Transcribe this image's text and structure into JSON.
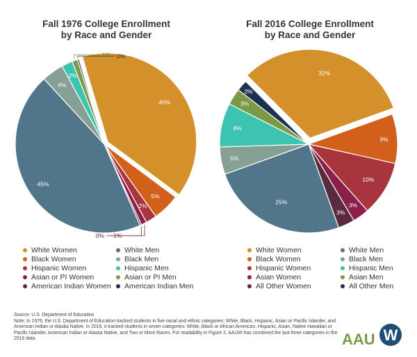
{
  "titles": {
    "chart1_line1": "Fall 1976 College Enrollment",
    "chart1_line2": "by Race and Gender",
    "chart2_line1": "Fall 2016 College Enrollment",
    "chart2_line2": "by Race and Gender"
  },
  "chart_data": [
    {
      "type": "pie",
      "title": "Fall 1976 College Enrollment by Race and Gender",
      "slices": [
        {
          "label": "White Women",
          "value": 40,
          "display": "40%",
          "color": "#D4902A"
        },
        {
          "label": "Black Women",
          "value": 5,
          "display": "5%",
          "color": "#D2601A"
        },
        {
          "label": "Hispanic Women",
          "value": 2,
          "display": "2%",
          "color": "#A8343E"
        },
        {
          "label": "Asian or PI Women",
          "value": 1,
          "display": "1%",
          "color": "#8C1F4A"
        },
        {
          "label": "American Indian Women",
          "value": 0.3,
          "display": "0%",
          "color": "#5A2A3E"
        },
        {
          "label": "White Men",
          "value": 45,
          "display": "45%",
          "color": "#517589"
        },
        {
          "label": "Black Men",
          "value": 4,
          "display": "4%",
          "color": "#86A096"
        },
        {
          "label": "Hispanic Men",
          "value": 2,
          "display": "2%",
          "color": "#3CC4B0"
        },
        {
          "label": "Asian or PI Men",
          "value": 1,
          "display": "1%",
          "color": "#7B9A45"
        },
        {
          "label": "American Indian Men",
          "value": 0.3,
          "display": "0%",
          "color": "#1E3050"
        }
      ]
    },
    {
      "type": "pie",
      "title": "Fall 2016 College Enrollment by Race and Gender",
      "slices": [
        {
          "label": "White Women",
          "value": 32,
          "display": "32%",
          "color": "#D4902A"
        },
        {
          "label": "Black Women",
          "value": 9,
          "display": "9%",
          "color": "#D2601A"
        },
        {
          "label": "Hispanic Women",
          "value": 10,
          "display": "10%",
          "color": "#A8343E"
        },
        {
          "label": "Asian Women",
          "value": 3,
          "display": "3%",
          "color": "#8C1F4A"
        },
        {
          "label": "All Other Women",
          "value": 3,
          "display": "3%",
          "color": "#5A2A3E"
        },
        {
          "label": "White Men",
          "value": 25,
          "display": "25%",
          "color": "#517589"
        },
        {
          "label": "Black Men",
          "value": 5,
          "display": "5%",
          "color": "#86A096"
        },
        {
          "label": "Hispanic Men",
          "value": 8,
          "display": "8%",
          "color": "#3CC4B0"
        },
        {
          "label": "Asian Men",
          "value": 3,
          "display": "3%",
          "color": "#7B9A45"
        },
        {
          "label": "All Other Men",
          "value": 2,
          "display": "2%",
          "color": "#1E3050"
        }
      ]
    }
  ],
  "legend_1976": [
    {
      "label": "White Women",
      "color": "#D4902A"
    },
    {
      "label": "White Men",
      "color": "#517589"
    },
    {
      "label": "Black Women",
      "color": "#D2601A"
    },
    {
      "label": "Black Men",
      "color": "#86A096"
    },
    {
      "label": "Hispanic Women",
      "color": "#A8343E"
    },
    {
      "label": "Hispanic Men",
      "color": "#3CC4B0"
    },
    {
      "label": "Asian or PI Women",
      "color": "#8C1F4A"
    },
    {
      "label": "Asian or PI Men",
      "color": "#7B9A45"
    },
    {
      "label": "American Indian Women",
      "color": "#5A2A3E"
    },
    {
      "label": "American Indian Men",
      "color": "#1E3050"
    }
  ],
  "legend_2016": [
    {
      "label": "White Women",
      "color": "#D4902A"
    },
    {
      "label": "White Men",
      "color": "#517589"
    },
    {
      "label": "Black Women",
      "color": "#D2601A"
    },
    {
      "label": "Black Men",
      "color": "#86A096"
    },
    {
      "label": "Hispanic Women",
      "color": "#A8343E"
    },
    {
      "label": "Hispanic Men",
      "color": "#3CC4B0"
    },
    {
      "label": "Asian Women",
      "color": "#8C1F4A"
    },
    {
      "label": "Asian Men",
      "color": "#7B9A45"
    },
    {
      "label": "All Other Women",
      "color": "#5A2A3E"
    },
    {
      "label": "All Other Men",
      "color": "#1E3050"
    }
  ],
  "footer": {
    "source": "Source: U.S. Department of Education",
    "note": "Note: In 1976, the U.S. Department of Education tracked students in five racial and ethnic categories: White, Black, Hispanic, Asian or Pacific Islander, and American Indian or Alaska Native. In 2016, it tracked students in seven categories: White, Black or African American, Hispanic, Asian, Native Hawaiian or Pacific Islander, American Indian or Alaska Native, and Two or More Races. For readability in Figure 2, AAUW has combined the last three categories in the 2016 data."
  },
  "logo": {
    "text": "AAU",
    "mark": "W",
    "text_color": "#7B9A45",
    "mark_color": "#1E4E78"
  }
}
